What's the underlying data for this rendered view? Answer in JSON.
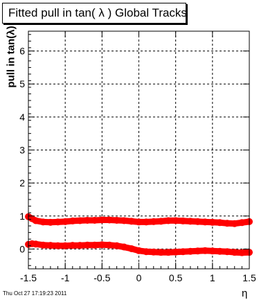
{
  "title": "Fitted pull in tan( λ )  Global Tracks",
  "footer": "Thu Oct 27 17:19:23 2011",
  "chart_data": {
    "type": "scatter",
    "title": "Fitted pull in tan( λ )  Global Tracks",
    "xlabel": "η",
    "ylabel": "pull in tan(λ)",
    "xlim": [
      -1.5,
      1.5
    ],
    "ylim": [
      -0.6,
      6.6
    ],
    "grid": true,
    "xticks": [
      "-1.5",
      "-1",
      "-0.5",
      "0",
      "0.5",
      "1",
      "1.5"
    ],
    "yticks": [
      "0",
      "1",
      "2",
      "3",
      "4",
      "5",
      "6"
    ],
    "color": "#ff0000",
    "series": [
      {
        "x": [
          -1.5,
          -1.45,
          -1.4,
          -1.3,
          -1.2,
          -1.1,
          -1.0,
          -0.9,
          -0.8,
          -0.7,
          -0.6,
          -0.5,
          -0.4,
          -0.3,
          -0.2,
          -0.1,
          0.0,
          0.1,
          0.2,
          0.3,
          0.4,
          0.5,
          0.6,
          0.7,
          0.8,
          0.9,
          1.0,
          1.1,
          1.2,
          1.3,
          1.4,
          1.5
        ],
        "values": [
          0.98,
          0.92,
          0.86,
          0.82,
          0.81,
          0.82,
          0.83,
          0.85,
          0.86,
          0.87,
          0.87,
          0.88,
          0.88,
          0.87,
          0.86,
          0.84,
          0.82,
          0.82,
          0.83,
          0.84,
          0.86,
          0.86,
          0.85,
          0.84,
          0.83,
          0.82,
          0.81,
          0.8,
          0.78,
          0.77,
          0.8,
          0.83
        ]
      },
      {
        "x": [
          -1.5,
          -1.45,
          -1.4,
          -1.3,
          -1.2,
          -1.1,
          -1.0,
          -0.9,
          -0.8,
          -0.7,
          -0.6,
          -0.5,
          -0.4,
          -0.3,
          -0.2,
          -0.1,
          0.0,
          0.1,
          0.2,
          0.3,
          0.4,
          0.5,
          0.6,
          0.7,
          0.8,
          0.9,
          1.0,
          1.1,
          1.2,
          1.3,
          1.4,
          1.5
        ],
        "values": [
          0.14,
          0.16,
          0.15,
          0.12,
          0.11,
          0.1,
          0.1,
          0.11,
          0.11,
          0.12,
          0.12,
          0.13,
          0.12,
          0.1,
          0.06,
          0.01,
          -0.05,
          -0.08,
          -0.09,
          -0.1,
          -0.1,
          -0.09,
          -0.08,
          -0.07,
          -0.06,
          -0.05,
          -0.06,
          -0.07,
          -0.08,
          -0.1,
          -0.11,
          -0.1
        ]
      }
    ]
  }
}
